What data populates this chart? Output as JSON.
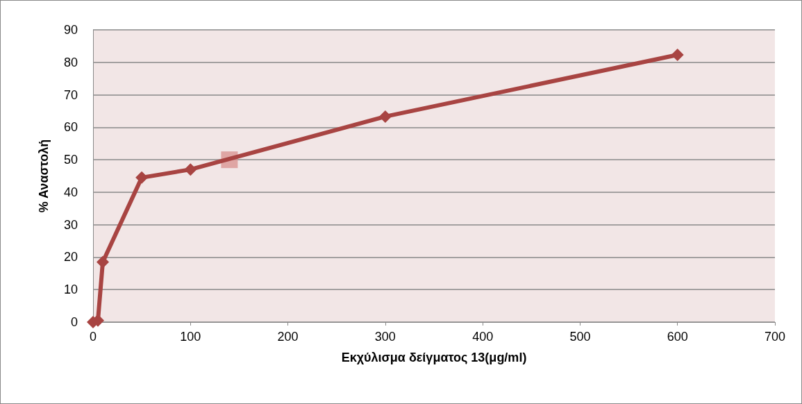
{
  "chart_data": {
    "type": "line",
    "xlabel": "Εκχύλισμα δείγματος 13(μg/ml)",
    "ylabel": "% Αναστολή",
    "series": [
      {
        "color": "#a84442",
        "x": [
          0,
          5,
          10,
          50,
          100,
          300,
          600
        ],
        "values": [
          0,
          0.5,
          18.5,
          44.5,
          47,
          63.3,
          82.3
        ],
        "marker": "diamond"
      },
      {
        "type": "scatter",
        "color": "#d99694",
        "x": [
          140
        ],
        "values": [
          50
        ],
        "marker": "square"
      }
    ],
    "xlim": [
      0,
      700
    ],
    "xticks": [
      0,
      100,
      200,
      300,
      400,
      500,
      600,
      700
    ],
    "ylim": [
      0,
      90
    ],
    "yticks": [
      0,
      10,
      20,
      30,
      40,
      50,
      60,
      70,
      80,
      90
    ],
    "grid": "y",
    "line_style": "solid"
  }
}
